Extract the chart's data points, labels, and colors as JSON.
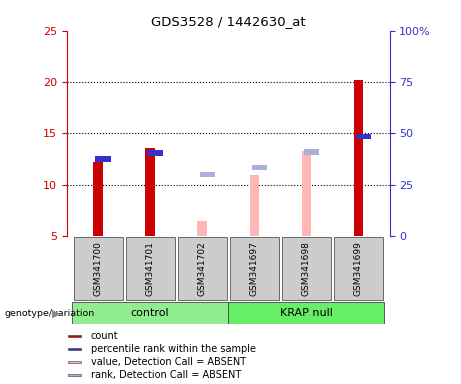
{
  "title": "GDS3528 / 1442630_at",
  "samples": [
    "GSM341700",
    "GSM341701",
    "GSM341702",
    "GSM341697",
    "GSM341698",
    "GSM341699"
  ],
  "red_bars": [
    12.2,
    13.6,
    null,
    null,
    null,
    20.2
  ],
  "blue_squares": [
    12.5,
    13.1,
    null,
    null,
    null,
    14.7
  ],
  "pink_bars": [
    null,
    null,
    6.5,
    11.0,
    13.3,
    null
  ],
  "lblue_squares": [
    null,
    null,
    11.0,
    11.7,
    13.2,
    null
  ],
  "ylim": [
    5,
    25
  ],
  "yticks": [
    5,
    10,
    15,
    20,
    25
  ],
  "y2lim": [
    0,
    100
  ],
  "y2ticks": [
    0,
    25,
    50,
    75,
    100
  ],
  "y2ticklabels": [
    "0",
    "25",
    "50",
    "75",
    "100%"
  ],
  "red_color": "#cc0000",
  "blue_color": "#3333cc",
  "pink_color": "#ffb6b6",
  "lblue_color": "#aab0d8",
  "label_bg": "#cccccc",
  "control_color": "#90ee90",
  "krap_color": "#66ee66",
  "genotype_label": "genotype/variation",
  "legend_items": [
    {
      "label": "count",
      "color": "#cc0000"
    },
    {
      "label": "percentile rank within the sample",
      "color": "#3333cc"
    },
    {
      "label": "value, Detection Call = ABSENT",
      "color": "#ffb6b6"
    },
    {
      "label": "rank, Detection Call = ABSENT",
      "color": "#aab0d8"
    }
  ]
}
